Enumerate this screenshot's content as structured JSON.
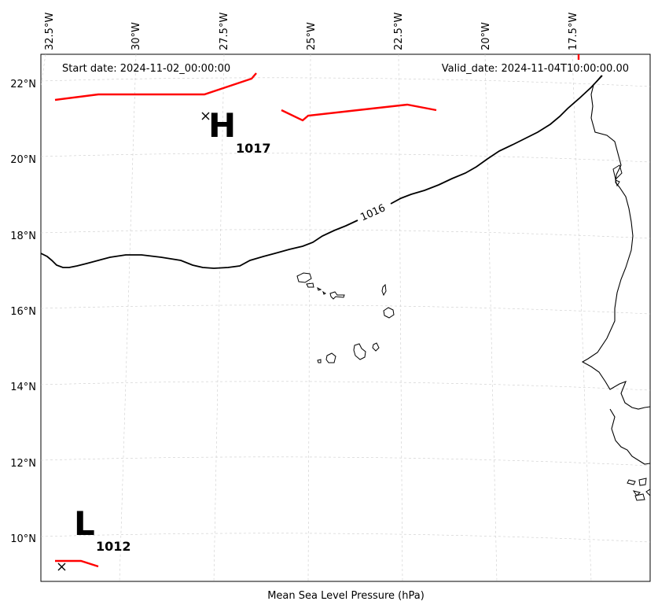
{
  "start_date": "Start date: 2024-11-02_00:00:00",
  "valid_date": "Valid_date: 2024-11-04T10:00:00.00",
  "xlabel": "Mean Sea Level Pressure (hPa)",
  "lon_labels": [
    "32.5°W",
    "30°W",
    "27.5°W",
    "25°W",
    "22.5°W",
    "20°W",
    "17.5°W"
  ],
  "lat_labels": [
    "22°N",
    "20°N",
    "18°N",
    "16°N",
    "14°N",
    "12°N",
    "10°N"
  ],
  "contour_label": "1016",
  "highs": [
    {
      "letter": "H",
      "value": "1017"
    }
  ],
  "lows": [
    {
      "letter": "L",
      "value": "1012"
    }
  ],
  "colors": {
    "coast": "#000000",
    "isobar": "#000000",
    "front": "#ff0000",
    "grid": "#cccccc"
  },
  "chart_data": {
    "type": "map",
    "projection": "conic",
    "lon_range": [
      "32.5°W",
      "17.5°W"
    ],
    "lat_range": [
      "9°N",
      "22.5°N"
    ],
    "gridlines": true,
    "isobars": [
      {
        "value": 1016
      }
    ],
    "pressure_centers": [
      {
        "type": "H",
        "value": 1017
      },
      {
        "type": "L",
        "value": 1012
      }
    ]
  }
}
